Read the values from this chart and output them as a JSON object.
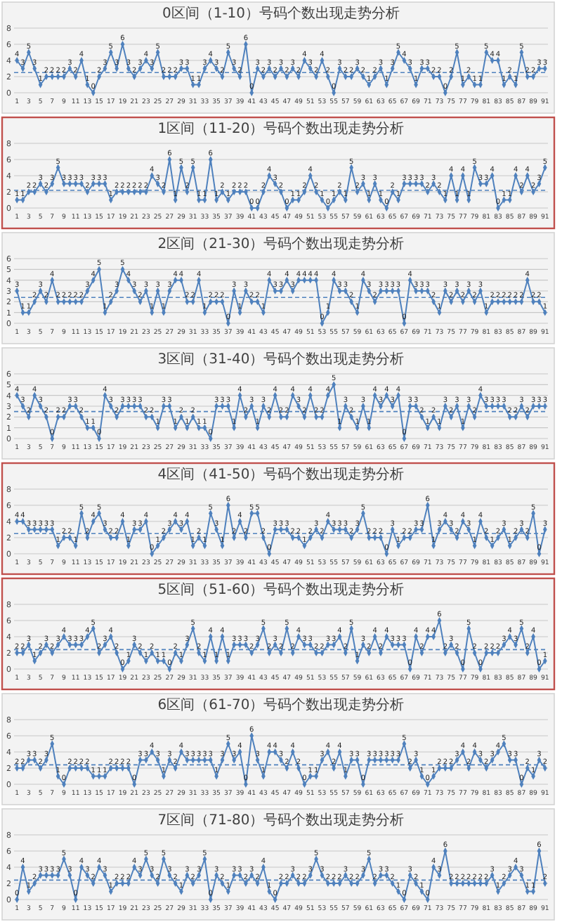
{
  "chart_data": [
    {
      "type": "line",
      "title": "0区间（1-10）号码个数出现走势分析",
      "x": [
        1,
        2,
        3,
        4,
        5,
        6,
        7,
        8,
        9,
        10,
        11,
        12,
        13,
        14,
        15,
        16,
        17,
        18,
        19,
        20,
        21,
        22,
        23,
        24,
        25,
        26,
        27,
        28,
        29,
        30,
        31,
        32,
        33,
        34,
        35,
        36,
        37,
        38,
        39,
        40,
        41,
        42,
        43,
        44,
        45,
        46,
        47,
        48,
        49,
        50,
        51,
        52,
        53,
        54,
        55,
        56,
        57,
        58,
        59,
        60,
        61,
        62,
        63,
        64,
        65,
        66,
        67,
        68,
        69,
        70,
        71,
        72,
        73,
        74,
        75,
        76,
        77,
        78,
        79,
        80,
        81,
        82,
        83,
        84,
        85,
        86,
        87,
        88,
        89,
        90,
        91
      ],
      "xlim": [
        0.5,
        91.5
      ],
      "xticks": [
        1,
        3,
        5,
        7,
        9,
        11,
        13,
        15,
        17,
        19,
        21,
        23,
        25,
        27,
        29,
        31,
        33,
        35,
        37,
        39,
        41,
        43,
        45,
        47,
        49,
        51,
        53,
        55,
        57,
        59,
        61,
        63,
        65,
        67,
        69,
        71,
        73,
        75,
        77,
        79,
        81,
        83,
        85,
        87,
        89,
        91
      ],
      "series": [
        {
          "color": "#4f81bd",
          "values": [
            4,
            3,
            5,
            3,
            1,
            2,
            2,
            2,
            2,
            3,
            2,
            4,
            1,
            0,
            2,
            3,
            5,
            3,
            6,
            3,
            2,
            3,
            4,
            3,
            5,
            2,
            2,
            2,
            3,
            3,
            1,
            1,
            3,
            4,
            3,
            2,
            5,
            3,
            2,
            6,
            0,
            3,
            2,
            3,
            2,
            3,
            2,
            3,
            2,
            4,
            3,
            2,
            4,
            2,
            0,
            3,
            2,
            2,
            3,
            2,
            1,
            2,
            3,
            1,
            3,
            5,
            4,
            3,
            1,
            3,
            3,
            2,
            2,
            0,
            2,
            5,
            1,
            2,
            1,
            1,
            5,
            4,
            4,
            1,
            2,
            1,
            5,
            2,
            2,
            3,
            3
          ]
        }
      ],
      "ylim": [
        0,
        8
      ],
      "yticks": [
        0,
        2,
        4,
        6,
        8
      ],
      "grid": "y",
      "marker": "diamond",
      "data_labels": true,
      "ref_lines": [
        {
          "axis": "y",
          "value": 2.5,
          "color": "#4f81bd",
          "line_style": "dashed"
        }
      ]
    },
    {
      "type": "line",
      "title": "1区间（11-20）号码个数出现走势分析",
      "x": [
        1,
        2,
        3,
        4,
        5,
        6,
        7,
        8,
        9,
        10,
        11,
        12,
        13,
        14,
        15,
        16,
        17,
        18,
        19,
        20,
        21,
        22,
        23,
        24,
        25,
        26,
        27,
        28,
        29,
        30,
        31,
        32,
        33,
        34,
        35,
        36,
        37,
        38,
        39,
        40,
        41,
        42,
        43,
        44,
        45,
        46,
        47,
        48,
        49,
        50,
        51,
        52,
        53,
        54,
        55,
        56,
        57,
        58,
        59,
        60,
        61,
        62,
        63,
        64,
        65,
        66,
        67,
        68,
        69,
        70,
        71,
        72,
        73,
        74,
        75,
        76,
        77,
        78,
        79,
        80,
        81,
        82,
        83,
        84,
        85,
        86,
        87,
        88,
        89,
        90,
        91
      ],
      "xlim": [
        0.5,
        91.5
      ],
      "xticks": [
        1,
        3,
        5,
        7,
        9,
        11,
        13,
        15,
        17,
        19,
        21,
        23,
        25,
        27,
        29,
        31,
        33,
        35,
        37,
        39,
        41,
        43,
        45,
        47,
        49,
        51,
        53,
        55,
        57,
        59,
        61,
        63,
        65,
        67,
        69,
        71,
        73,
        75,
        77,
        79,
        81,
        83,
        85,
        87,
        89,
        91
      ],
      "series": [
        {
          "color": "#4f81bd",
          "values": [
            1,
            1,
            2,
            2,
            3,
            2,
            3,
            5,
            3,
            3,
            3,
            3,
            2,
            3,
            3,
            3,
            1,
            2,
            2,
            2,
            2,
            2,
            2,
            4,
            3,
            2,
            6,
            1,
            5,
            2,
            5,
            1,
            1,
            6,
            1,
            2,
            1,
            2,
            2,
            2,
            0,
            0,
            2,
            4,
            3,
            2,
            0,
            1,
            1,
            2,
            4,
            2,
            1,
            0,
            1,
            2,
            1,
            5,
            2,
            3,
            1,
            3,
            1,
            0,
            2,
            1,
            3,
            3,
            3,
            3,
            2,
            3,
            2,
            1,
            4,
            1,
            4,
            1,
            5,
            3,
            3,
            4,
            0,
            1,
            1,
            4,
            2,
            4,
            2,
            3,
            5
          ]
        }
      ],
      "ylim": [
        0,
        8
      ],
      "yticks": [
        0,
        2,
        4,
        6,
        8
      ],
      "grid": "y",
      "marker": "diamond",
      "data_labels": true,
      "ref_lines": [
        {
          "axis": "y",
          "value": 2.2,
          "color": "#4f81bd",
          "line_style": "dashed"
        }
      ]
    },
    {
      "type": "line",
      "title": "2区间（21-30）号码个数出现走势分析",
      "x": [
        1,
        2,
        3,
        4,
        5,
        6,
        7,
        8,
        9,
        10,
        11,
        12,
        13,
        14,
        15,
        16,
        17,
        18,
        19,
        20,
        21,
        22,
        23,
        24,
        25,
        26,
        27,
        28,
        29,
        30,
        31,
        32,
        33,
        34,
        35,
        36,
        37,
        38,
        39,
        40,
        41,
        42,
        43,
        44,
        45,
        46,
        47,
        48,
        49,
        50,
        51,
        52,
        53,
        54,
        55,
        56,
        57,
        58,
        59,
        60,
        61,
        62,
        63,
        64,
        65,
        66,
        67,
        68,
        69,
        70,
        71,
        72,
        73,
        74,
        75,
        76,
        77,
        78,
        79,
        80,
        81,
        82,
        83,
        84,
        85,
        86,
        87,
        88,
        89,
        90,
        91
      ],
      "xlim": [
        0.5,
        91.5
      ],
      "xticks": [
        1,
        3,
        5,
        7,
        9,
        11,
        13,
        15,
        17,
        19,
        21,
        23,
        25,
        27,
        29,
        31,
        33,
        35,
        37,
        39,
        41,
        43,
        45,
        47,
        49,
        51,
        53,
        55,
        57,
        59,
        61,
        63,
        65,
        67,
        69,
        71,
        73,
        75,
        77,
        79,
        81,
        83,
        85,
        87,
        89,
        91
      ],
      "series": [
        {
          "color": "#4f81bd",
          "values": [
            3,
            1,
            1,
            2,
            3,
            2,
            4,
            2,
            2,
            2,
            2,
            2,
            3,
            4,
            5,
            1,
            2,
            3,
            5,
            4,
            3,
            2,
            3,
            1,
            3,
            1,
            3,
            4,
            4,
            2,
            2,
            4,
            1,
            2,
            2,
            2,
            0,
            3,
            1,
            3,
            2,
            2,
            1,
            4,
            3,
            3,
            4,
            3,
            4,
            4,
            4,
            4,
            0,
            1,
            4,
            3,
            3,
            2,
            1,
            4,
            3,
            2,
            3,
            3,
            3,
            3,
            0,
            4,
            3,
            3,
            3,
            2,
            1,
            3,
            2,
            3,
            2,
            3,
            2,
            3,
            1,
            2,
            2,
            2,
            2,
            2,
            2,
            4,
            2,
            2,
            1
          ]
        }
      ],
      "ylim": [
        0,
        6
      ],
      "yticks": [
        0,
        1,
        2,
        3,
        4,
        5,
        6
      ],
      "grid": "y",
      "marker": "diamond",
      "data_labels": true,
      "ref_lines": [
        {
          "axis": "y",
          "value": 2.4,
          "color": "#4f81bd",
          "line_style": "dashed"
        }
      ]
    },
    {
      "type": "line",
      "title": "3区间（31-40）号码个数出现走势分析",
      "x": [
        1,
        2,
        3,
        4,
        5,
        6,
        7,
        8,
        9,
        10,
        11,
        12,
        13,
        14,
        15,
        16,
        17,
        18,
        19,
        20,
        21,
        22,
        23,
        24,
        25,
        26,
        27,
        28,
        29,
        30,
        31,
        32,
        33,
        34,
        35,
        36,
        37,
        38,
        39,
        40,
        41,
        42,
        43,
        44,
        45,
        46,
        47,
        48,
        49,
        50,
        51,
        52,
        53,
        54,
        55,
        56,
        57,
        58,
        59,
        60,
        61,
        62,
        63,
        64,
        65,
        66,
        67,
        68,
        69,
        70,
        71,
        72,
        73,
        74,
        75,
        76,
        77,
        78,
        79,
        80,
        81,
        82,
        83,
        84,
        85,
        86,
        87,
        88,
        89,
        90,
        91
      ],
      "xlim": [
        0.5,
        91.5
      ],
      "xticks": [
        1,
        3,
        5,
        7,
        9,
        11,
        13,
        15,
        17,
        19,
        21,
        23,
        25,
        27,
        29,
        31,
        33,
        35,
        37,
        39,
        41,
        43,
        45,
        47,
        49,
        51,
        53,
        55,
        57,
        59,
        61,
        63,
        65,
        67,
        69,
        71,
        73,
        75,
        77,
        79,
        81,
        83,
        85,
        87,
        89,
        91
      ],
      "series": [
        {
          "color": "#4f81bd",
          "values": [
            4,
            3,
            2,
            4,
            3,
            2,
            0,
            2,
            2,
            3,
            3,
            2,
            1,
            1,
            0,
            4,
            3,
            2,
            3,
            3,
            3,
            3,
            2,
            2,
            1,
            3,
            3,
            1,
            2,
            1,
            2,
            1,
            1,
            0,
            3,
            3,
            3,
            1,
            4,
            2,
            3,
            1,
            3,
            2,
            4,
            2,
            2,
            4,
            3,
            2,
            4,
            2,
            2,
            4,
            5,
            1,
            3,
            2,
            1,
            3,
            1,
            4,
            3,
            4,
            3,
            4,
            0,
            3,
            3,
            2,
            1,
            2,
            1,
            3,
            2,
            3,
            1,
            3,
            2,
            4,
            3,
            3,
            3,
            3,
            2,
            2,
            3,
            2,
            3,
            3,
            3
          ]
        }
      ],
      "ylim": [
        0,
        6
      ],
      "yticks": [
        0,
        1,
        2,
        3,
        4,
        5,
        6
      ],
      "grid": "y",
      "marker": "diamond",
      "data_labels": true,
      "ref_lines": [
        {
          "axis": "y",
          "value": 2.5,
          "color": "#4f81bd",
          "line_style": "dashed"
        }
      ]
    },
    {
      "type": "line",
      "title": "4区间（41-50）号码个数出现走势分析",
      "x": [
        1,
        2,
        3,
        4,
        5,
        6,
        7,
        8,
        9,
        10,
        11,
        12,
        13,
        14,
        15,
        16,
        17,
        18,
        19,
        20,
        21,
        22,
        23,
        24,
        25,
        26,
        27,
        28,
        29,
        30,
        31,
        32,
        33,
        34,
        35,
        36,
        37,
        38,
        39,
        40,
        41,
        42,
        43,
        44,
        45,
        46,
        47,
        48,
        49,
        50,
        51,
        52,
        53,
        54,
        55,
        56,
        57,
        58,
        59,
        60,
        61,
        62,
        63,
        64,
        65,
        66,
        67,
        68,
        69,
        70,
        71,
        72,
        73,
        74,
        75,
        76,
        77,
        78,
        79,
        80,
        81,
        82,
        83,
        84,
        85,
        86,
        87,
        88,
        89,
        90,
        91
      ],
      "xlim": [
        0.5,
        91.5
      ],
      "xticks": [
        1,
        3,
        5,
        7,
        9,
        11,
        13,
        15,
        17,
        19,
        21,
        23,
        25,
        27,
        29,
        31,
        33,
        35,
        37,
        39,
        41,
        43,
        45,
        47,
        49,
        51,
        53,
        55,
        57,
        59,
        61,
        63,
        65,
        67,
        69,
        71,
        73,
        75,
        77,
        79,
        81,
        83,
        85,
        87,
        89,
        91
      ],
      "series": [
        {
          "color": "#4f81bd",
          "values": [
            4,
            4,
            3,
            3,
            3,
            3,
            3,
            1,
            2,
            2,
            1,
            5,
            2,
            4,
            5,
            3,
            2,
            2,
            4,
            1,
            3,
            3,
            4,
            0,
            1,
            2,
            3,
            4,
            3,
            4,
            1,
            2,
            1,
            5,
            3,
            1,
            6,
            2,
            4,
            2,
            5,
            5,
            2,
            0,
            3,
            3,
            3,
            2,
            2,
            1,
            2,
            3,
            2,
            4,
            3,
            3,
            3,
            2,
            3,
            5,
            2,
            2,
            2,
            0,
            3,
            1,
            2,
            2,
            3,
            3,
            6,
            1,
            3,
            4,
            3,
            2,
            4,
            3,
            1,
            4,
            2,
            1,
            2,
            3,
            1,
            2,
            3,
            2,
            5,
            0,
            3
          ]
        }
      ],
      "ylim": [
        0,
        8
      ],
      "yticks": [
        0,
        2,
        4,
        6,
        8
      ],
      "grid": "y",
      "marker": "diamond",
      "data_labels": true,
      "ref_lines": [
        {
          "axis": "y",
          "value": 2.5,
          "color": "#4f81bd",
          "line_style": "dashed"
        }
      ]
    },
    {
      "type": "line",
      "title": "5区间（51-60）号码个数出现走势分析",
      "x": [
        1,
        2,
        3,
        4,
        5,
        6,
        7,
        8,
        9,
        10,
        11,
        12,
        13,
        14,
        15,
        16,
        17,
        18,
        19,
        20,
        21,
        22,
        23,
        24,
        25,
        26,
        27,
        28,
        29,
        30,
        31,
        32,
        33,
        34,
        35,
        36,
        37,
        38,
        39,
        40,
        41,
        42,
        43,
        44,
        45,
        46,
        47,
        48,
        49,
        50,
        51,
        52,
        53,
        54,
        55,
        56,
        57,
        58,
        59,
        60,
        61,
        62,
        63,
        64,
        65,
        66,
        67,
        68,
        69,
        70,
        71,
        72,
        73,
        74,
        75,
        76,
        77,
        78,
        79,
        80,
        81,
        82,
        83,
        84,
        85,
        86,
        87,
        88,
        89,
        90,
        91
      ],
      "xlim": [
        0.5,
        91.5
      ],
      "xticks": [
        1,
        3,
        5,
        7,
        9,
        11,
        13,
        15,
        17,
        19,
        21,
        23,
        25,
        27,
        29,
        31,
        33,
        35,
        37,
        39,
        41,
        43,
        45,
        47,
        49,
        51,
        53,
        55,
        57,
        59,
        61,
        63,
        65,
        67,
        69,
        71,
        73,
        75,
        77,
        79,
        81,
        83,
        85,
        87,
        89,
        91
      ],
      "series": [
        {
          "color": "#4f81bd",
          "values": [
            2,
            2,
            3,
            1,
            2,
            3,
            2,
            3,
            4,
            3,
            3,
            3,
            4,
            5,
            2,
            3,
            4,
            2,
            0,
            1,
            3,
            2,
            1,
            2,
            1,
            1,
            0,
            2,
            1,
            3,
            5,
            2,
            1,
            4,
            1,
            4,
            1,
            3,
            3,
            3,
            2,
            3,
            5,
            2,
            3,
            2,
            5,
            2,
            4,
            3,
            3,
            2,
            2,
            3,
            3,
            4,
            2,
            5,
            1,
            3,
            2,
            4,
            2,
            4,
            3,
            3,
            3,
            0,
            4,
            2,
            4,
            4,
            6,
            2,
            3,
            2,
            0,
            5,
            2,
            0,
            2,
            2,
            2,
            3,
            4,
            3,
            5,
            2,
            4,
            0,
            1
          ]
        }
      ],
      "ylim": [
        0,
        8
      ],
      "yticks": [
        0,
        2,
        4,
        6,
        8
      ],
      "grid": "y",
      "marker": "diamond",
      "data_labels": true,
      "ref_lines": [
        {
          "axis": "y",
          "value": 2.4,
          "color": "#4f81bd",
          "line_style": "dashed"
        }
      ]
    },
    {
      "type": "line",
      "title": "6区间（61-70）号码个数出现走势分析",
      "x": [
        1,
        2,
        3,
        4,
        5,
        6,
        7,
        8,
        9,
        10,
        11,
        12,
        13,
        14,
        15,
        16,
        17,
        18,
        19,
        20,
        21,
        22,
        23,
        24,
        25,
        26,
        27,
        28,
        29,
        30,
        31,
        32,
        33,
        34,
        35,
        36,
        37,
        38,
        39,
        40,
        41,
        42,
        43,
        44,
        45,
        46,
        47,
        48,
        49,
        50,
        51,
        52,
        53,
        54,
        55,
        56,
        57,
        58,
        59,
        60,
        61,
        62,
        63,
        64,
        65,
        66,
        67,
        68,
        69,
        70,
        71,
        72,
        73,
        74,
        75,
        76,
        77,
        78,
        79,
        80,
        81,
        82,
        83,
        84,
        85,
        86,
        87,
        88,
        89,
        90,
        91
      ],
      "xlim": [
        0.5,
        91.5
      ],
      "xticks": [
        1,
        3,
        5,
        7,
        9,
        11,
        13,
        15,
        17,
        19,
        21,
        23,
        25,
        27,
        29,
        31,
        33,
        35,
        37,
        39,
        41,
        43,
        45,
        47,
        49,
        51,
        53,
        55,
        57,
        59,
        61,
        63,
        65,
        67,
        69,
        71,
        73,
        75,
        77,
        79,
        81,
        83,
        85,
        87,
        89,
        91
      ],
      "series": [
        {
          "color": "#4f81bd",
          "values": [
            2,
            2,
            3,
            3,
            2,
            3,
            5,
            1,
            0,
            2,
            2,
            2,
            2,
            1,
            1,
            1,
            2,
            2,
            2,
            2,
            0,
            3,
            3,
            4,
            3,
            1,
            3,
            2,
            4,
            3,
            3,
            3,
            3,
            3,
            1,
            3,
            5,
            3,
            4,
            0,
            6,
            3,
            1,
            4,
            4,
            3,
            2,
            4,
            2,
            0,
            1,
            1,
            3,
            4,
            2,
            4,
            1,
            3,
            3,
            0,
            3,
            3,
            3,
            3,
            3,
            3,
            5,
            2,
            3,
            1,
            0,
            1,
            2,
            2,
            2,
            3,
            4,
            2,
            4,
            3,
            2,
            3,
            4,
            5,
            3,
            3,
            0,
            2,
            1,
            3,
            2
          ]
        }
      ],
      "ylim": [
        0,
        8
      ],
      "yticks": [
        0,
        2,
        4,
        6,
        8
      ],
      "grid": "y",
      "marker": "diamond",
      "data_labels": true,
      "ref_lines": [
        {
          "axis": "y",
          "value": 2.4,
          "color": "#4f81bd",
          "line_style": "dashed"
        }
      ]
    },
    {
      "type": "line",
      "title": "7区间（71-80）号码个数出现走势分析",
      "x": [
        1,
        2,
        3,
        4,
        5,
        6,
        7,
        8,
        9,
        10,
        11,
        12,
        13,
        14,
        15,
        16,
        17,
        18,
        19,
        20,
        21,
        22,
        23,
        24,
        25,
        26,
        27,
        28,
        29,
        30,
        31,
        32,
        33,
        34,
        35,
        36,
        37,
        38,
        39,
        40,
        41,
        42,
        43,
        44,
        45,
        46,
        47,
        48,
        49,
        50,
        51,
        52,
        53,
        54,
        55,
        56,
        57,
        58,
        59,
        60,
        61,
        62,
        63,
        64,
        65,
        66,
        67,
        68,
        69,
        70,
        71,
        72,
        73,
        74,
        75,
        76,
        77,
        78,
        79,
        80,
        81,
        82,
        83,
        84,
        85,
        86,
        87,
        88,
        89,
        90,
        91
      ],
      "xlim": [
        0.5,
        91.5
      ],
      "xticks": [
        1,
        3,
        5,
        7,
        9,
        11,
        13,
        15,
        17,
        19,
        21,
        23,
        25,
        27,
        29,
        31,
        33,
        35,
        37,
        39,
        41,
        43,
        45,
        47,
        49,
        51,
        53,
        55,
        57,
        59,
        61,
        63,
        65,
        67,
        69,
        71,
        73,
        75,
        77,
        79,
        81,
        83,
        85,
        87,
        89,
        91
      ],
      "series": [
        {
          "color": "#4f81bd",
          "values": [
            0,
            4,
            1,
            2,
            3,
            3,
            3,
            3,
            5,
            3,
            0,
            4,
            3,
            2,
            4,
            3,
            1,
            2,
            2,
            2,
            4,
            3,
            5,
            3,
            2,
            5,
            3,
            2,
            1,
            3,
            2,
            3,
            5,
            0,
            3,
            2,
            1,
            3,
            3,
            2,
            3,
            2,
            4,
            1,
            0,
            2,
            2,
            3,
            2,
            2,
            3,
            5,
            3,
            2,
            2,
            2,
            3,
            2,
            2,
            3,
            5,
            2,
            3,
            3,
            2,
            1,
            0,
            3,
            2,
            1,
            0,
            4,
            3,
            6,
            2,
            2,
            2,
            2,
            2,
            2,
            2,
            3,
            1,
            2,
            3,
            4,
            3,
            1,
            1,
            6,
            2
          ]
        }
      ],
      "ylim": [
        0,
        8
      ],
      "yticks": [
        0,
        2,
        4,
        6,
        8
      ],
      "grid": "y",
      "marker": "diamond",
      "data_labels": true,
      "ref_lines": [
        {
          "axis": "y",
          "value": 2.4,
          "color": "#4f81bd",
          "line_style": "dashed"
        }
      ]
    }
  ]
}
